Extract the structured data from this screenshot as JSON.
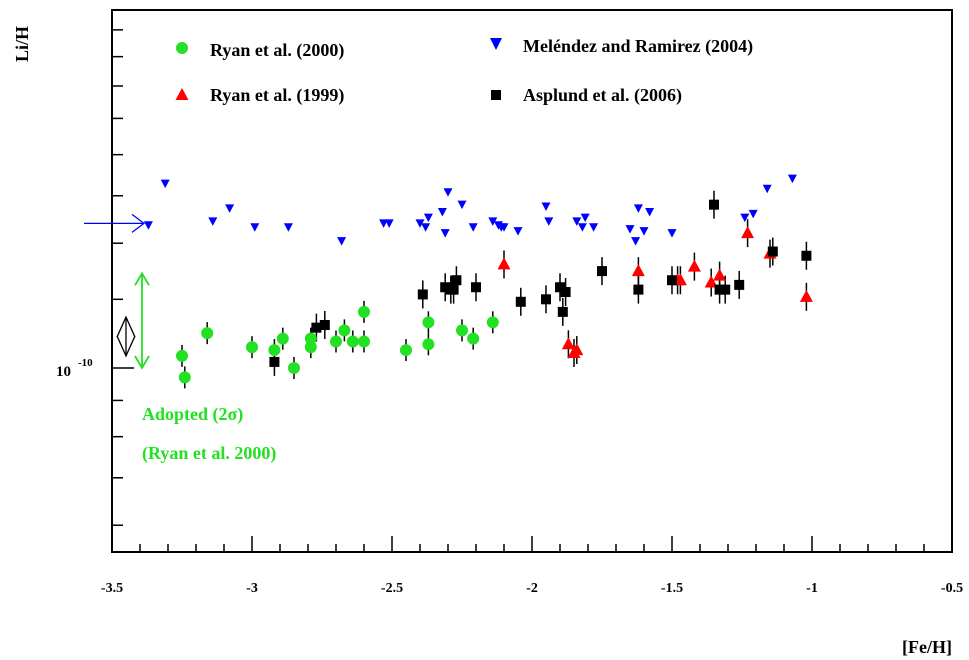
{
  "chart_data": {
    "type": "scatter",
    "title": "",
    "xlabel": "[Fe/H]",
    "ylabel": "Li/H",
    "xlim": [
      -3.5,
      -0.5
    ],
    "ylim": [
      5.5e-11,
      3.2e-10
    ],
    "yscale": "log",
    "xticks": [
      -3.5,
      -3,
      -2.5,
      -2,
      -1.5,
      -1,
      -0.5
    ],
    "xtick_labels": [
      "-3.5",
      "-3",
      "-2.5",
      "-2",
      "-1.5",
      "-1",
      "-0.5"
    ],
    "ytick_label_main": "10",
    "ytick_label_exp": "-10",
    "legend_position": "top",
    "series": [
      {
        "name": "Ryan et al. (2000)",
        "marker": "circle",
        "color": "#22e022",
        "x": [
          -3.25,
          -3.24,
          -3.16,
          -3.0,
          -2.92,
          -2.89,
          -2.85,
          -2.79,
          -2.79,
          -2.7,
          -2.67,
          -2.64,
          -2.6,
          -2.6,
          -2.45,
          -2.37,
          -2.37,
          -2.25,
          -2.21,
          -2.14
        ],
        "y": [
          1.04e-10,
          9.7e-11,
          1.12e-10,
          1.07e-10,
          1.06e-10,
          1.1e-10,
          1e-10,
          1.07e-10,
          1.1e-10,
          1.09e-10,
          1.13e-10,
          1.09e-10,
          1.2e-10,
          1.09e-10,
          1.06e-10,
          1.16e-10,
          1.08e-10,
          1.13e-10,
          1.1e-10,
          1.16e-10
        ]
      },
      {
        "name": "Ryan et al. (1999)",
        "marker": "triangle-up",
        "color": "#ff0000",
        "x": [
          -2.1,
          -1.87,
          -1.85,
          -1.84,
          -1.62,
          -1.48,
          -1.47,
          -1.42,
          -1.36,
          -1.33,
          -1.23,
          -1.15,
          -1.02
        ],
        "y": [
          1.4e-10,
          1.08e-10,
          1.05e-10,
          1.06e-10,
          1.37e-10,
          1.33e-10,
          1.33e-10,
          1.39e-10,
          1.32e-10,
          1.35e-10,
          1.55e-10,
          1.45e-10,
          1.26e-10
        ]
      },
      {
        "name": "Meléndez and Ramirez (2004)",
        "marker": "triangle-down",
        "color": "#0000ff",
        "x": [
          -3.31,
          -3.37,
          -3.14,
          -3.08,
          -2.99,
          -2.87,
          -2.68,
          -2.53,
          -2.51,
          -2.4,
          -2.38,
          -2.37,
          -2.32,
          -2.31,
          -2.3,
          -2.25,
          -2.21,
          -2.14,
          -2.12,
          -2.11,
          -2.1,
          -2.05,
          -1.95,
          -1.94,
          -1.84,
          -1.82,
          -1.81,
          -1.78,
          -1.65,
          -1.63,
          -1.62,
          -1.6,
          -1.58,
          -1.5,
          -1.24,
          -1.21,
          -1.16,
          -1.07
        ],
        "y": [
          1.82e-10,
          1.59e-10,
          1.61e-10,
          1.68e-10,
          1.58e-10,
          1.58e-10,
          1.51e-10,
          1.6e-10,
          1.6e-10,
          1.6e-10,
          1.58e-10,
          1.63e-10,
          1.66e-10,
          1.55e-10,
          1.77e-10,
          1.7e-10,
          1.58e-10,
          1.61e-10,
          1.59e-10,
          1.58e-10,
          1.58e-10,
          1.56e-10,
          1.69e-10,
          1.61e-10,
          1.61e-10,
          1.58e-10,
          1.63e-10,
          1.58e-10,
          1.57e-10,
          1.51e-10,
          1.68e-10,
          1.56e-10,
          1.66e-10,
          1.55e-10,
          1.63e-10,
          1.65e-10,
          1.79e-10,
          1.85e-10
        ],
        "y_fixed_note": ""
      },
      {
        "name": "Asplund et al. (2006)",
        "marker": "square",
        "color": "#000000",
        "x": [
          -2.92,
          -2.77,
          -2.74,
          -2.39,
          -2.31,
          -2.29,
          -2.28,
          -2.27,
          -2.2,
          -2.04,
          -1.95,
          -1.9,
          -1.89,
          -1.88,
          -1.75,
          -1.62,
          -1.5,
          -1.35,
          -1.33,
          -1.31,
          -1.26,
          -1.14,
          -1.02
        ],
        "y": [
          1.02e-10,
          1.14e-10,
          1.15e-10,
          1.27e-10,
          1.3e-10,
          1.29e-10,
          1.29e-10,
          1.33e-10,
          1.3e-10,
          1.24e-10,
          1.25e-10,
          1.3e-10,
          1.2e-10,
          1.28e-10,
          1.37e-10,
          1.29e-10,
          1.33e-10,
          1.7e-10,
          1.29e-10,
          1.29e-10,
          1.31e-10,
          1.46e-10,
          1.44e-10
        ]
      }
    ],
    "legend": [
      {
        "name": "Ryan et al. (2000)",
        "marker": "circle",
        "color": "#22e022"
      },
      {
        "name": "Ryan et al. (1999)",
        "marker": "triangle-up",
        "color": "#ff0000"
      },
      {
        "name": "Meléndez and Ramirez (2004)",
        "marker": "triangle-down",
        "color": "#0000ff"
      },
      {
        "name": "Asplund et al. (2006)",
        "marker": "square",
        "color": "#000000"
      }
    ],
    "annotations": {
      "adopted_line1": "Adopted (2σ)",
      "adopted_line2": "(Ryan et al. 2000)",
      "adopted_color": "#22e022",
      "adopted_range": [
        1e-10,
        1.36e-10
      ],
      "inner_range": [
        1.04e-10,
        1.18e-10
      ],
      "arrow_value": 1.6e-10,
      "arrow_color": "#0000ff"
    }
  }
}
